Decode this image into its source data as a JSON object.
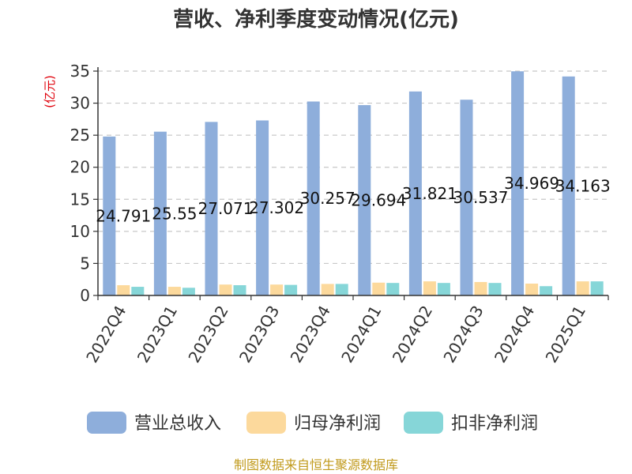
{
  "chart_data": {
    "type": "bar",
    "title": "营收、净利季度变动情况(亿元)",
    "unit_label": "(亿元)",
    "categories": [
      "2022Q4",
      "2023Q1",
      "2023Q2",
      "2023Q3",
      "2023Q4",
      "2024Q1",
      "2024Q2",
      "2024Q3",
      "2024Q4",
      "2025Q1"
    ],
    "series": [
      {
        "name": "营业总收入",
        "color": "#8eaedb",
        "values": [
          24.791,
          25.55,
          27.071,
          27.302,
          30.257,
          29.694,
          31.821,
          30.537,
          34.969,
          34.163
        ],
        "labels": [
          "24.791",
          "25.55",
          "27.071",
          "27.302",
          "30.257",
          "29.694",
          "31.821",
          "30.537",
          "34.969",
          "34.163"
        ]
      },
      {
        "name": "归母净利润",
        "color": "#fcd99c",
        "values": [
          1.6,
          1.35,
          1.7,
          1.7,
          1.8,
          2.0,
          2.2,
          2.1,
          1.85,
          2.2
        ]
      },
      {
        "name": "扣非净利润",
        "color": "#86d6d8",
        "values": [
          1.35,
          1.2,
          1.6,
          1.65,
          1.8,
          1.95,
          1.95,
          1.95,
          1.45,
          2.2
        ]
      }
    ],
    "ylim": [
      0,
      35
    ],
    "yticks": [
      "0",
      "5",
      "10",
      "15",
      "20",
      "25",
      "30",
      "35"
    ],
    "grid": true,
    "legend_position": "bottom"
  },
  "source": "制图数据来自恒生聚源数据库"
}
